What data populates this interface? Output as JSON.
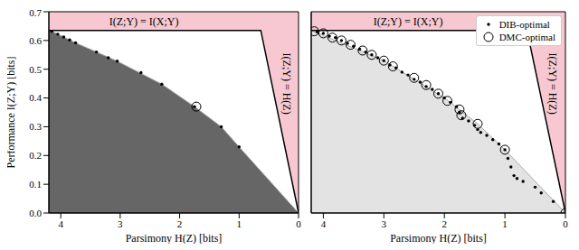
{
  "chart_data": [
    {
      "type": "scatter",
      "x_label": "Parsimony H(Z) [bits]",
      "y_label": "Performance I(Z;Y) [bits]",
      "xlim": [
        4.2,
        0
      ],
      "ylim": [
        0,
        0.7
      ],
      "xticks": [
        4,
        3,
        2,
        1,
        0
      ],
      "yticks": [
        {
          "value": 0,
          "label": "0.0"
        },
        0.1,
        0.2,
        0.3,
        0.4,
        0.5,
        0.6,
        0.7
      ],
      "bound": 0.635,
      "bound_color": "#f7c8d2",
      "annotations": [
        {
          "text": "I(Z;Y) = I(X;Y)",
          "x": 2.6,
          "y": 0.667
        },
        {
          "text": "I(Z;Y) = H(Z)",
          "x": 0.2,
          "y": 0.45
        }
      ],
      "series": [
        {
          "type": "area",
          "color": "#666666",
          "x": [
            4.2,
            4.15,
            3.75,
            3.05,
            2.3,
            1.75,
            1.3,
            1.0,
            0.0
          ],
          "values": [
            0.635,
            0.632,
            0.592,
            0.528,
            0.448,
            0.37,
            0.3,
            0.23,
            0.0
          ]
        },
        {
          "type": "scatter",
          "marker": "dot",
          "color": "#000000",
          "x": [
            4.15,
            4.05,
            3.95,
            3.85,
            3.75,
            3.4,
            3.2,
            3.05,
            2.65,
            2.3,
            1.75,
            1.3,
            1.0,
            0.0
          ],
          "values": [
            0.632,
            0.622,
            0.612,
            0.602,
            0.592,
            0.56,
            0.54,
            0.528,
            0.488,
            0.448,
            0.37,
            0.3,
            0.23,
            0.0
          ]
        },
        {
          "type": "scatter",
          "marker": "circle",
          "color": "#000000",
          "x": [
            1.72
          ],
          "values": [
            0.37
          ]
        }
      ]
    },
    {
      "type": "scatter",
      "x_label": "Parsimony H(Z) [bits]",
      "xlim": [
        4.2,
        0
      ],
      "ylim": [
        0,
        0.7
      ],
      "xticks": [
        4,
        3,
        2,
        1,
        0
      ],
      "yticks": [
        {
          "value": 0,
          "label": "0.0"
        },
        0.1,
        0.2,
        0.3,
        0.4,
        0.5,
        0.6,
        0.7
      ],
      "tick_labels": "x",
      "bound": 0.635,
      "bound_color": "#f7c8d2",
      "legend": "upper right",
      "annotations": [
        {
          "text": "I(Z;Y) = I(X;Y)",
          "x": 2.6,
          "y": 0.667
        },
        {
          "text": "I(Z;Y) = H(Z)",
          "x": 0.2,
          "y": 0.45
        }
      ],
      "series": [
        {
          "type": "area",
          "color": "#e3e3e3",
          "x": [
            4.2,
            3.0,
            2.0,
            1.45,
            1.0,
            0.0
          ],
          "values": [
            0.635,
            0.53,
            0.4,
            0.31,
            0.22,
            0.0
          ]
        },
        {
          "type": "scatter",
          "name": "DIB-optimal",
          "marker": "dot",
          "color": "#000000",
          "x": [
            4.1,
            4.0,
            3.9,
            3.8,
            3.7,
            3.6,
            3.5,
            3.4,
            3.3,
            3.2,
            3.1,
            3.0,
            2.9,
            2.8,
            2.7,
            2.6,
            2.5,
            2.4,
            2.3,
            2.2,
            2.1,
            2.0,
            1.9,
            1.8,
            1.75,
            1.7,
            1.6,
            1.5,
            1.45,
            1.4,
            1.3,
            1.2,
            1.1,
            1.0,
            0.95,
            0.9,
            0.85,
            0.8,
            0.7,
            0.5,
            0.4,
            0.2,
            0.0
          ],
          "values": [
            0.63,
            0.625,
            0.615,
            0.61,
            0.6,
            0.59,
            0.58,
            0.57,
            0.56,
            0.55,
            0.54,
            0.53,
            0.515,
            0.505,
            0.49,
            0.48,
            0.465,
            0.455,
            0.44,
            0.43,
            0.415,
            0.4,
            0.385,
            0.37,
            0.35,
            0.33,
            0.32,
            0.305,
            0.29,
            0.28,
            0.27,
            0.255,
            0.24,
            0.22,
            0.19,
            0.16,
            0.13,
            0.12,
            0.11,
            0.09,
            0.07,
            0.04,
            0.0
          ]
        },
        {
          "type": "scatter",
          "name": "DMC-optimal",
          "marker": "circle",
          "color": "#000000",
          "x": [
            4.15,
            4.0,
            3.85,
            3.7,
            3.55,
            3.35,
            3.2,
            3.0,
            2.85,
            2.5,
            2.3,
            2.1,
            1.95,
            1.75,
            1.72,
            1.45,
            1.0,
            0.0
          ],
          "values": [
            0.632,
            0.625,
            0.61,
            0.6,
            0.585,
            0.565,
            0.55,
            0.53,
            0.51,
            0.47,
            0.445,
            0.415,
            0.39,
            0.36,
            0.34,
            0.31,
            0.22,
            0.0
          ]
        }
      ]
    }
  ]
}
